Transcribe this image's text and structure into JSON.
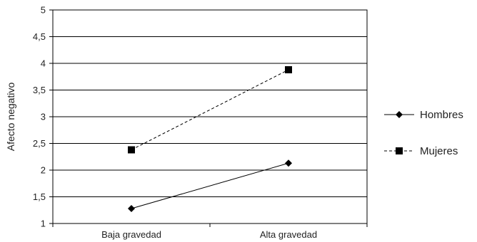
{
  "chart_data": {
    "type": "line",
    "title": "",
    "xlabel": "",
    "ylabel": "Afecto negativo",
    "categories": [
      "Baja gravedad",
      "Alta gravedad"
    ],
    "ylim": [
      1,
      5
    ],
    "yticks": [
      "1",
      "1,5",
      "2",
      "2,5",
      "3",
      "3,5",
      "4",
      "4,5",
      "5"
    ],
    "grid": "horizontal",
    "legend_position": "right",
    "series": [
      {
        "name": "Hombres",
        "values": [
          1.28,
          2.13
        ],
        "marker": "diamond",
        "line_style": "solid",
        "color": "#000000"
      },
      {
        "name": "Mujeres",
        "values": [
          2.38,
          3.88
        ],
        "marker": "square",
        "line_style": "dashed",
        "color": "#000000"
      }
    ]
  }
}
